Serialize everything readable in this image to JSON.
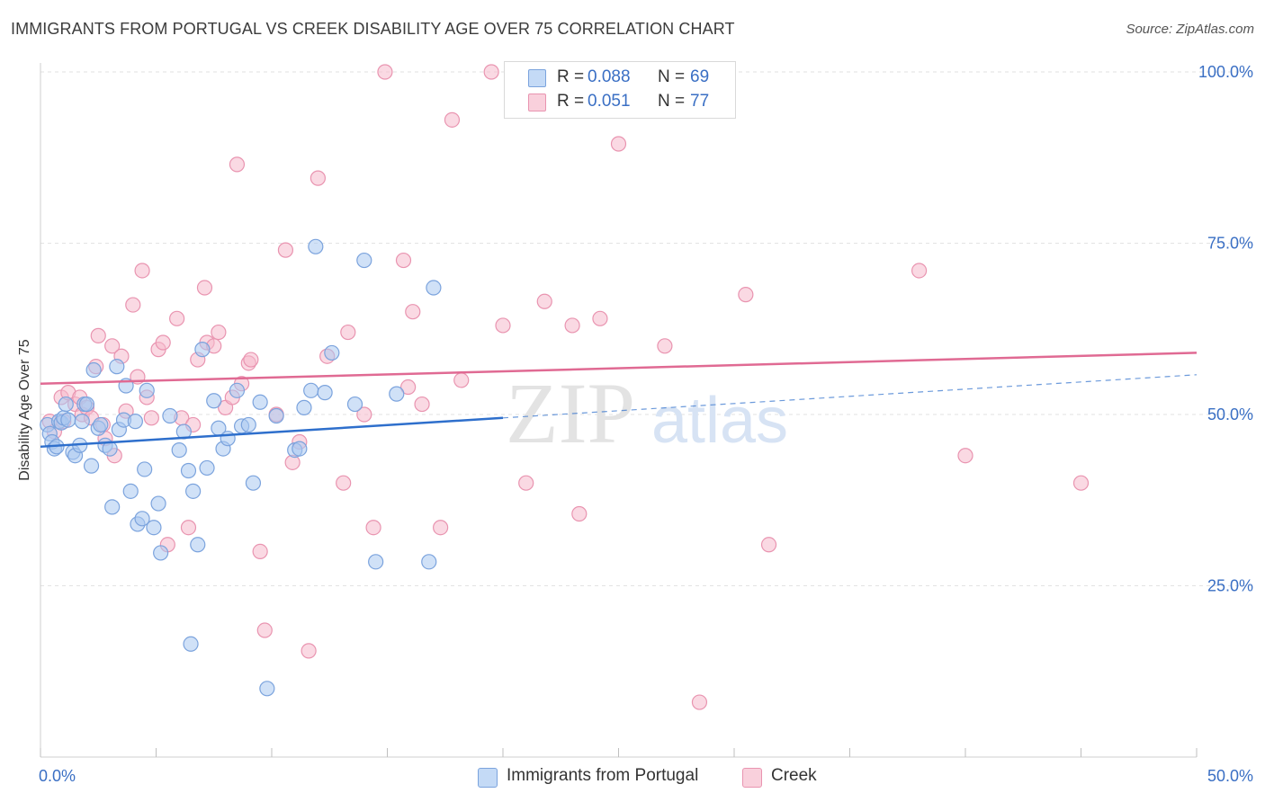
{
  "title": "IMMIGRANTS FROM PORTUGAL VS CREEK DISABILITY AGE OVER 75 CORRELATION CHART",
  "source": "Source: ZipAtlas.com",
  "watermark": {
    "zip": "ZIP",
    "atlas": "atlas"
  },
  "legend_top": {
    "rows": [
      {
        "r_label": "R =",
        "r_value": "0.088",
        "n_label": "N =",
        "n_value": "69"
      },
      {
        "r_label": "R =",
        "r_value": "0.051",
        "n_label": "N =",
        "n_value": "77"
      }
    ]
  },
  "colors": {
    "blue_fill": "#a9c8f0",
    "blue_stroke": "#7ba3dd",
    "blue_line": "#2e6fcc",
    "pink_fill": "#f5b9cc",
    "pink_stroke": "#e994b0",
    "pink_line": "#e06a93",
    "grid": "#e2e2e2",
    "tick_text": "#3a6fc4"
  },
  "chart_data": {
    "type": "scatter",
    "title": "IMMIGRANTS FROM PORTUGAL VS CREEK DISABILITY AGE OVER 75 CORRELATION CHART",
    "xlabel": "",
    "ylabel": "Disability Age Over 75",
    "xlim": [
      0,
      50
    ],
    "ylim": [
      0,
      105
    ],
    "x_tick_labels": [
      "0.0%",
      "50.0%"
    ],
    "y_ticks": [
      25,
      50,
      75,
      100
    ],
    "y_tick_labels": [
      "25.0%",
      "50.0%",
      "75.0%",
      "100.0%"
    ],
    "series": [
      {
        "name": "Immigrants from Portugal",
        "color": "blue",
        "trend": {
          "x0": 0,
          "y0": 45.3,
          "x1": 20,
          "y1": 49.5,
          "dash_to_x": 50,
          "dash_to_y": 55.8
        },
        "points": [
          [
            0.3,
            48.5
          ],
          [
            0.4,
            47.2
          ],
          [
            0.5,
            46
          ],
          [
            0.6,
            45
          ],
          [
            0.7,
            45.3
          ],
          [
            0.8,
            49
          ],
          [
            0.9,
            48.8
          ],
          [
            1.0,
            49.5
          ],
          [
            1.1,
            51.5
          ],
          [
            1.2,
            49.2
          ],
          [
            1.4,
            44.5
          ],
          [
            1.5,
            44
          ],
          [
            1.7,
            45.5
          ],
          [
            1.8,
            49
          ],
          [
            1.9,
            51.5
          ],
          [
            2.0,
            51.5
          ],
          [
            2.2,
            42.5
          ],
          [
            2.3,
            56.5
          ],
          [
            2.5,
            48
          ],
          [
            2.6,
            48.5
          ],
          [
            2.8,
            45.5
          ],
          [
            3.0,
            45
          ],
          [
            3.1,
            36.5
          ],
          [
            3.3,
            57
          ],
          [
            3.4,
            47.8
          ],
          [
            3.6,
            49.2
          ],
          [
            3.7,
            54.2
          ],
          [
            3.9,
            38.8
          ],
          [
            4.1,
            49
          ],
          [
            4.2,
            34
          ],
          [
            4.4,
            34.8
          ],
          [
            4.5,
            42
          ],
          [
            4.6,
            53.5
          ],
          [
            4.9,
            33.5
          ],
          [
            5.1,
            37
          ],
          [
            5.2,
            29.8
          ],
          [
            5.6,
            49.8
          ],
          [
            6.0,
            44.8
          ],
          [
            6.2,
            47.5
          ],
          [
            6.4,
            41.8
          ],
          [
            6.6,
            38.8
          ],
          [
            6.8,
            31
          ],
          [
            7.0,
            59.5
          ],
          [
            7.2,
            42.2
          ],
          [
            7.7,
            48
          ],
          [
            7.9,
            45
          ],
          [
            8.1,
            46.5
          ],
          [
            8.5,
            53.5
          ],
          [
            8.7,
            48.3
          ],
          [
            9.0,
            48.5
          ],
          [
            9.2,
            40
          ],
          [
            9.5,
            51.8
          ],
          [
            9.8,
            10
          ],
          [
            10.2,
            49.8
          ],
          [
            11.0,
            44.8
          ],
          [
            11.4,
            51
          ],
          [
            11.7,
            53.5
          ],
          [
            11.9,
            74.5
          ],
          [
            12.3,
            53.2
          ],
          [
            12.6,
            59
          ],
          [
            13.6,
            51.5
          ],
          [
            14.0,
            72.5
          ],
          [
            14.5,
            28.5
          ],
          [
            15.4,
            53
          ],
          [
            16.8,
            28.5
          ],
          [
            17.0,
            68.5
          ],
          [
            6.5,
            16.5
          ],
          [
            7.5,
            52
          ],
          [
            11.2,
            45
          ]
        ]
      },
      {
        "name": "Creek",
        "color": "pink",
        "trend": {
          "x0": 0,
          "y0": 54.5,
          "x1": 50,
          "y1": 59
        },
        "points": [
          [
            0.4,
            49
          ],
          [
            0.6,
            47.5
          ],
          [
            0.9,
            52.5
          ],
          [
            1.2,
            53.2
          ],
          [
            1.5,
            51.5
          ],
          [
            1.7,
            52.5
          ],
          [
            1.8,
            50
          ],
          [
            2.0,
            51
          ],
          [
            2.2,
            49.5
          ],
          [
            2.4,
            57
          ],
          [
            2.5,
            61.5
          ],
          [
            2.7,
            48.5
          ],
          [
            2.8,
            46.5
          ],
          [
            3.1,
            60
          ],
          [
            3.2,
            44
          ],
          [
            3.5,
            58.5
          ],
          [
            3.7,
            50.5
          ],
          [
            4.0,
            66
          ],
          [
            4.2,
            55.5
          ],
          [
            4.4,
            71
          ],
          [
            4.6,
            52.5
          ],
          [
            4.8,
            49.5
          ],
          [
            5.1,
            59.5
          ],
          [
            5.3,
            60.5
          ],
          [
            5.5,
            31
          ],
          [
            5.9,
            64
          ],
          [
            6.1,
            49.5
          ],
          [
            6.4,
            33.5
          ],
          [
            6.6,
            48.5
          ],
          [
            6.8,
            58
          ],
          [
            7.1,
            68.5
          ],
          [
            7.2,
            60.5
          ],
          [
            7.5,
            60
          ],
          [
            7.7,
            62
          ],
          [
            8.0,
            51
          ],
          [
            8.3,
            52.5
          ],
          [
            8.5,
            86.5
          ],
          [
            8.7,
            54.5
          ],
          [
            9.0,
            57.5
          ],
          [
            9.1,
            58
          ],
          [
            9.5,
            30
          ],
          [
            9.7,
            18.5
          ],
          [
            10.2,
            50
          ],
          [
            10.6,
            74
          ],
          [
            10.9,
            43
          ],
          [
            11.2,
            46
          ],
          [
            11.6,
            15.5
          ],
          [
            12.0,
            84.5
          ],
          [
            12.4,
            58.5
          ],
          [
            13.1,
            40
          ],
          [
            13.3,
            62
          ],
          [
            14.0,
            50
          ],
          [
            14.4,
            33.5
          ],
          [
            14.9,
            100
          ],
          [
            15.7,
            72.5
          ],
          [
            15.9,
            54
          ],
          [
            16.1,
            65
          ],
          [
            16.5,
            51.5
          ],
          [
            17.3,
            33.5
          ],
          [
            17.8,
            93
          ],
          [
            18.2,
            55
          ],
          [
            19.5,
            100
          ],
          [
            20.0,
            63
          ],
          [
            21.0,
            40
          ],
          [
            21.8,
            66.5
          ],
          [
            23.0,
            63
          ],
          [
            23.3,
            35.5
          ],
          [
            24.2,
            64
          ],
          [
            25.0,
            89.5
          ],
          [
            27.0,
            60
          ],
          [
            28.5,
            8
          ],
          [
            30.5,
            67.5
          ],
          [
            31.5,
            31
          ],
          [
            38.0,
            71
          ],
          [
            40.0,
            44
          ],
          [
            45.0,
            40
          ],
          [
            1.0,
            49
          ]
        ]
      }
    ]
  },
  "legend_bottom": {
    "items": [
      {
        "label": "Immigrants from Portugal"
      },
      {
        "label": "Creek"
      }
    ]
  }
}
